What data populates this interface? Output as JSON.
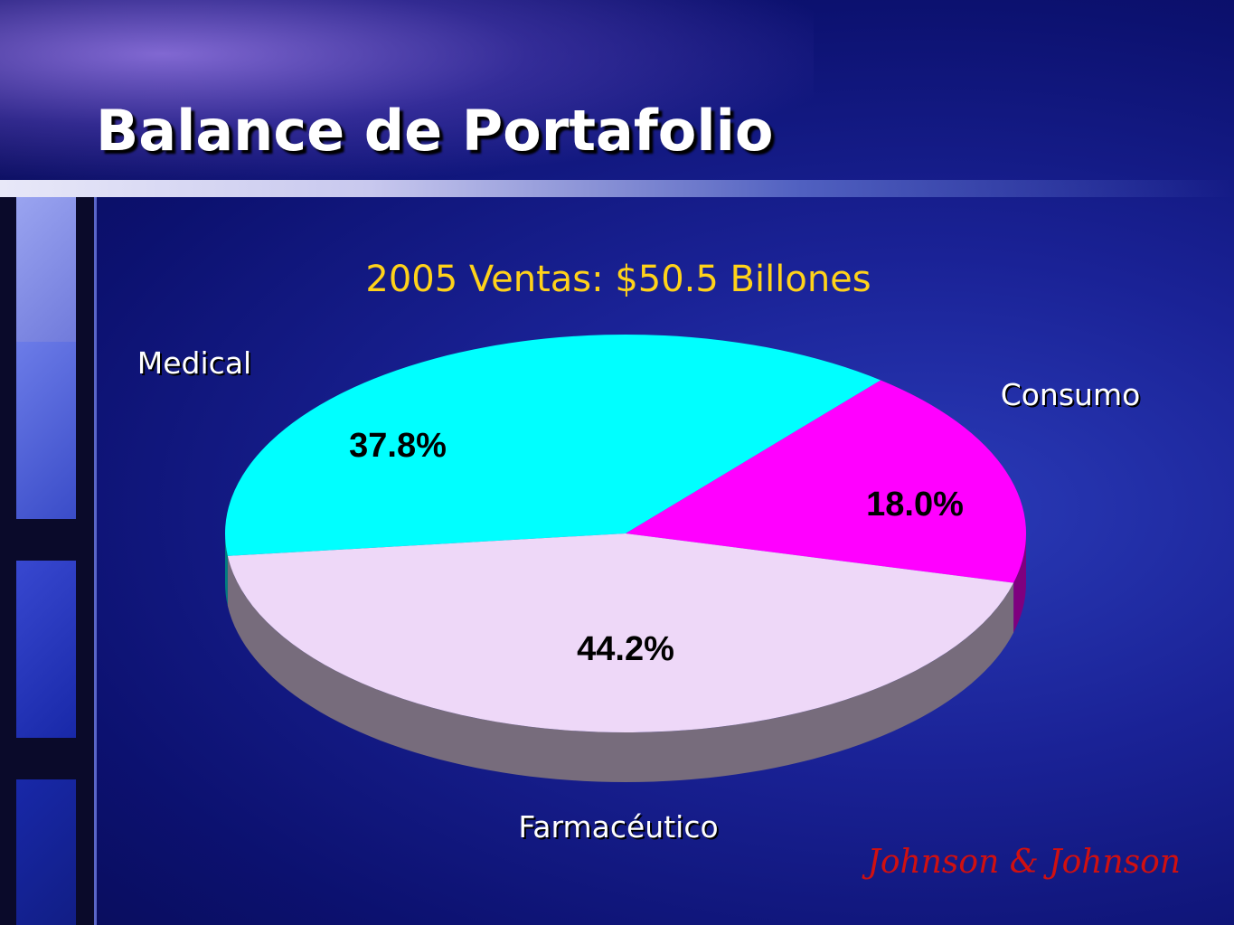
{
  "chart_data": {
    "type": "pie",
    "title": "Balance de Portafolio",
    "subtitle": "2005 Ventas: $50.5 Billones",
    "categories": [
      "Medical",
      "Consumo",
      "Farmacéutico"
    ],
    "values": [
      37.8,
      18.0,
      44.2
    ],
    "value_labels": [
      "37.8%",
      "18.0%",
      "44.2%"
    ],
    "colors": [
      "#00ffff",
      "#ff00ff",
      "#eed8f8"
    ]
  },
  "logo": "Johnson & Johnson"
}
